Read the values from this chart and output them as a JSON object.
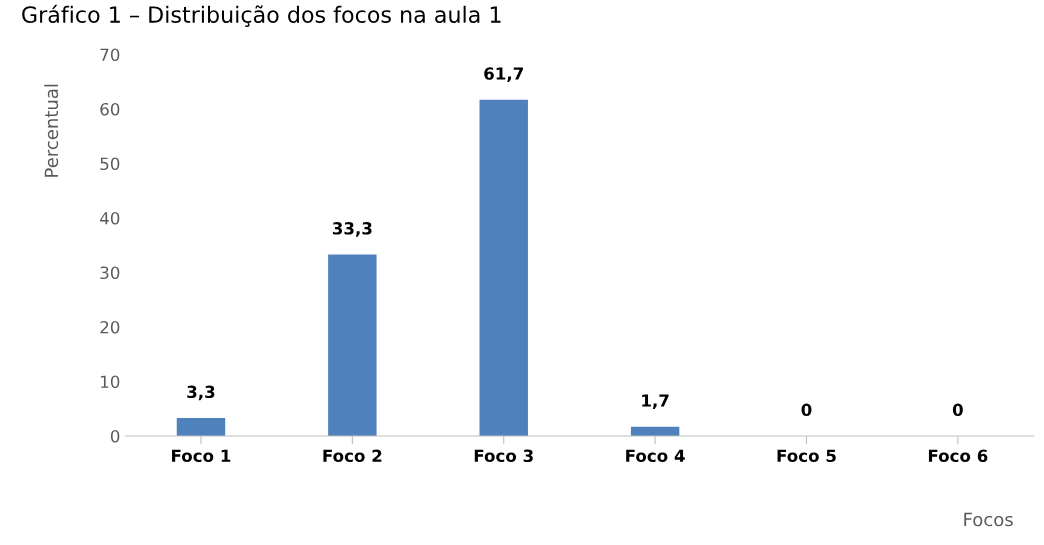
{
  "chart_data": {
    "type": "bar",
    "title": "Gráfico 1 – Distribuição dos focos na aula 1",
    "xlabel": "Focos",
    "ylabel": "Percentual",
    "categories": [
      "Foco 1",
      "Foco 2",
      "Foco 3",
      "Foco 4",
      "Foco 5",
      "Foco 6"
    ],
    "values": [
      3.3,
      33.3,
      61.7,
      1.7,
      0,
      0
    ],
    "value_labels": [
      "3,3",
      "33,3",
      "61,7",
      "1,7",
      "0",
      "0"
    ],
    "color": "#4f81bd",
    "ylim": [
      0,
      70
    ],
    "yticks": [
      0,
      10,
      20,
      30,
      40,
      50,
      60,
      70
    ],
    "grid": false
  }
}
